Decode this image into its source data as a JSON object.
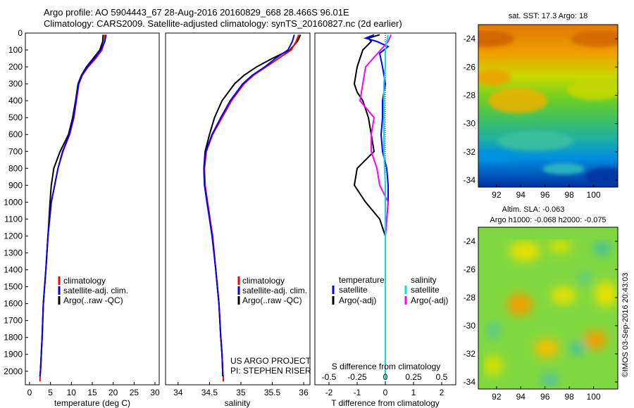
{
  "figure": {
    "title_line1": "Argo profile: AO 5904443_67 28-Aug-2016 20160829_668 28.466S 96.01E",
    "title_line2": "Climatology: CARS2009. Satellite-adjusted climatology: synTS_20160827.nc (2d earlier)",
    "credit": "©IMOS 03-Sep-2016 20:43:03",
    "project_line1": "US ARGO PROJECT",
    "project_line2": "PI: STEPHEN RISER"
  },
  "colors": {
    "climatology": "#ff0000",
    "satellite": "#0000ff",
    "argo": "#000000",
    "sal_satellite": "#00e0e0",
    "sal_argo": "#ff00ff"
  },
  "chart_data": [
    {
      "id": "temperature_profile",
      "type": "line",
      "xlabel": "temperature (deg C)",
      "ylabel": "",
      "xlim": [
        -1,
        31
      ],
      "ylim": [
        2080,
        0
      ],
      "xticks": [
        0,
        5,
        10,
        15,
        20,
        25,
        30
      ],
      "yticks": [
        0,
        100,
        200,
        300,
        400,
        500,
        600,
        700,
        800,
        900,
        1000,
        1100,
        1200,
        1300,
        1400,
        1500,
        1600,
        1700,
        1800,
        1900,
        2000
      ],
      "legend": [
        "climatology",
        "satellite-adj. clim.",
        "Argo(..raw -QC)"
      ],
      "series": [
        {
          "name": "climatology",
          "x": [
            18.0,
            17.9,
            17.3,
            15.8,
            14.0,
            12.6,
            11.8,
            11.2,
            10.6,
            9.6,
            8.0,
            6.8,
            6.0,
            5.2,
            4.4,
            3.9,
            3.3,
            3.0,
            2.8,
            2.6,
            2.5,
            2.5
          ],
          "y": [
            10,
            50,
            100,
            150,
            200,
            250,
            300,
            400,
            500,
            600,
            700,
            800,
            900,
            1000,
            1200,
            1400,
            1600,
            1800,
            1900,
            2000,
            2030,
            2060
          ]
        },
        {
          "name": "satellite-adj. clim.",
          "x": [
            18.3,
            18.0,
            17.0,
            15.5,
            13.8,
            12.5,
            11.7,
            11.1,
            10.5,
            9.5,
            7.9,
            6.8,
            6.0,
            5.2,
            4.4,
            3.9,
            3.3,
            3.0,
            2.8,
            2.6,
            2.5
          ],
          "y": [
            10,
            50,
            100,
            150,
            200,
            250,
            300,
            400,
            500,
            600,
            700,
            800,
            900,
            1000,
            1200,
            1400,
            1600,
            1800,
            1900,
            2000,
            2030
          ]
        },
        {
          "name": "Argo(..raw -QC)",
          "x": [
            17.6,
            17.5,
            16.8,
            15.2,
            13.6,
            12.4,
            11.6,
            11.0,
            10.3,
            9.3,
            7.3,
            5.8,
            5.2,
            4.9,
            4.4,
            3.9,
            3.3,
            3.0,
            2.8,
            2.6,
            2.5
          ],
          "y": [
            10,
            50,
            100,
            150,
            200,
            250,
            300,
            400,
            500,
            600,
            700,
            800,
            900,
            1000,
            1200,
            1400,
            1600,
            1800,
            1900,
            2000,
            2030
          ]
        }
      ]
    },
    {
      "id": "salinity_profile",
      "type": "line",
      "xlabel": "salinity",
      "ylabel": "",
      "xlim": [
        33.8,
        36.1
      ],
      "ylim": [
        2080,
        0
      ],
      "xticks": [
        34,
        34.5,
        35,
        35.5,
        36
      ],
      "xticklabels": [
        "34",
        "34.5",
        "35",
        "35.5",
        "36"
      ],
      "legend": [
        "climatology",
        "satellite-adj. clim.",
        "Argo(..raw -QC)"
      ],
      "series": [
        {
          "name": "climatology",
          "x": [
            35.92,
            35.88,
            35.8,
            35.6,
            35.4,
            35.2,
            35.05,
            34.85,
            34.7,
            34.55,
            34.45,
            34.42,
            34.43,
            34.47,
            34.55,
            34.6,
            34.65,
            34.68,
            34.7,
            34.71,
            34.72,
            34.72
          ],
          "y": [
            10,
            50,
            100,
            150,
            200,
            250,
            300,
            400,
            500,
            600,
            700,
            800,
            900,
            1000,
            1200,
            1400,
            1600,
            1800,
            1900,
            2000,
            2030,
            2060
          ]
        },
        {
          "name": "satellite-adj. clim.",
          "x": [
            35.85,
            35.82,
            35.75,
            35.55,
            35.38,
            35.18,
            35.03,
            34.83,
            34.68,
            34.54,
            34.44,
            34.41,
            34.42,
            34.46,
            34.54,
            34.6,
            34.65,
            34.68,
            34.7,
            34.71,
            34.71
          ],
          "y": [
            10,
            50,
            100,
            150,
            200,
            250,
            300,
            400,
            500,
            600,
            700,
            800,
            900,
            1000,
            1200,
            1400,
            1600,
            1800,
            1900,
            2000,
            2030
          ]
        },
        {
          "name": "Argo(..raw -QC)",
          "x": [
            35.95,
            35.9,
            35.78,
            35.5,
            35.25,
            35.05,
            34.9,
            34.7,
            34.58,
            34.5,
            34.43,
            34.41,
            34.42,
            34.46,
            34.55,
            34.6,
            34.65,
            34.68,
            34.7,
            34.71,
            34.71
          ],
          "y": [
            10,
            50,
            100,
            150,
            200,
            250,
            300,
            400,
            500,
            600,
            700,
            800,
            900,
            1000,
            1200,
            1400,
            1600,
            1800,
            1900,
            2000,
            2030
          ]
        }
      ]
    },
    {
      "id": "difference_profile",
      "type": "line",
      "xlabel": "T difference from climatology",
      "top_label": "S difference from climatology",
      "xlim": [
        -2.5,
        2.5
      ],
      "ylim": [
        2080,
        0
      ],
      "xticks": [
        -2,
        -1,
        0,
        1,
        2
      ],
      "xticklabels": [
        "-2",
        "-1",
        "0",
        "1",
        "2"
      ],
      "s_ticks": [
        -0.5,
        -0.25,
        0,
        0.25,
        0.5
      ],
      "s_ticklabels": [
        "-0.5",
        "-0.25",
        "0",
        "0.25",
        "0.5"
      ],
      "s_scale_note": "S axis = T axis / 4",
      "legend_temperature": "temperature",
      "legend_salinity": "salinity",
      "legend_satellite": "satellite",
      "legend_argo": "Argo(-adj)",
      "series": [
        {
          "name": "temperature satellite",
          "x": [
            -0.4,
            -0.7,
            -0.3,
            0.1,
            -0.2,
            -0.1,
            0.0,
            -0.1,
            -0.1,
            -0.15,
            -0.1,
            0.05,
            0.1,
            0.1,
            0.0,
            0.0,
            0.0,
            0.0,
            0.0
          ],
          "y": [
            10,
            30,
            50,
            80,
            120,
            200,
            300,
            400,
            500,
            600,
            700,
            800,
            900,
            1000,
            1200,
            1400,
            1600,
            1800,
            2050
          ]
        },
        {
          "name": "temperature Argo(-adj)",
          "x": [
            -0.2,
            -0.6,
            -0.5,
            -0.8,
            -1.0,
            -1.1,
            -1.0,
            -0.8,
            -0.6,
            -0.5,
            -0.4,
            -1.0,
            -1.1,
            -0.7,
            -0.2,
            0.0,
            0.0,
            0.0,
            0.0
          ],
          "y": [
            10,
            30,
            50,
            100,
            200,
            300,
            350,
            400,
            500,
            600,
            700,
            800,
            900,
            1000,
            1100,
            1200,
            1400,
            1800,
            2050
          ]
        },
        {
          "name": "salinity satellite",
          "x": [
            0.1,
            0.05,
            0.0,
            0.0,
            -0.05,
            -0.05,
            -0.05,
            0.0,
            0.0,
            0.0,
            0.0,
            0.0
          ],
          "y": [
            10,
            50,
            100,
            200,
            300,
            500,
            700,
            900,
            1100,
            1400,
            1800,
            2050
          ]
        },
        {
          "name": "salinity Argo(-adj)",
          "x": [
            0.2,
            0.1,
            -0.7,
            -0.8,
            -0.9,
            -0.4,
            -0.5,
            -0.5,
            -0.3,
            -0.2,
            0.1,
            0.0,
            0.0,
            0.0
          ],
          "y": [
            10,
            50,
            200,
            300,
            400,
            500,
            600,
            700,
            800,
            900,
            1000,
            1200,
            1600,
            2050
          ]
        }
      ]
    },
    {
      "id": "sst_map",
      "type": "heatmap",
      "title": "sat. SST: 17.3 Argo: 18",
      "xticks": [
        "92",
        "94",
        "96",
        "98",
        "100"
      ],
      "yticks": [
        "-24",
        "-26",
        "-28",
        "-30",
        "-32",
        "-34"
      ],
      "xlim": [
        90.5,
        102
      ],
      "ylim": [
        -34.5,
        -23
      ],
      "colormap": "jet"
    },
    {
      "id": "sla_map",
      "type": "heatmap",
      "title_line1": "Altim. SLA: -0.063",
      "title_line2": "Argo h1000: -0.068 h2000: -0.075",
      "xticks": [
        "92",
        "94",
        "96",
        "98",
        "100"
      ],
      "yticks": [
        "-24",
        "-26",
        "-28",
        "-30",
        "-32",
        "-34"
      ],
      "xlim": [
        90.5,
        102
      ],
      "ylim": [
        -34.5,
        -23
      ],
      "colormap": "jet"
    }
  ]
}
